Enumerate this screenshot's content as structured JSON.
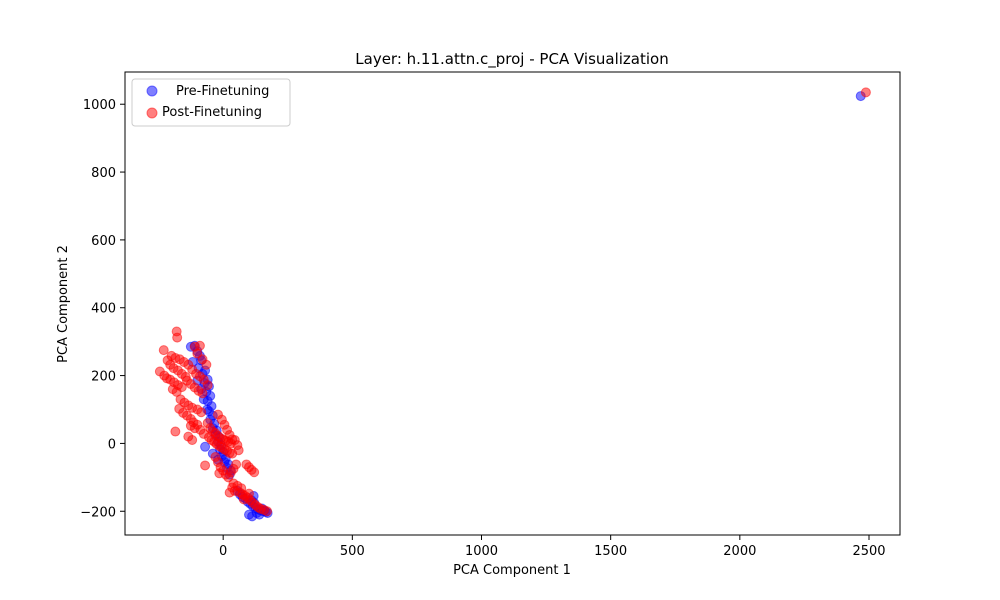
{
  "colors": {
    "pre": "#0000ff",
    "post": "#ff0000",
    "axis": "#000000",
    "legend_border": "#cccccc"
  },
  "chart_data": {
    "type": "scatter",
    "title": "Layer: h.11.attn.c_proj - PCA Visualization",
    "xlabel": "PCA Component 1",
    "ylabel": "PCA Component 2",
    "xlim": [
      -380,
      2620
    ],
    "ylim": [
      -270,
      1095
    ],
    "xticks": [
      0,
      500,
      1000,
      1500,
      2000,
      2500
    ],
    "yticks": [
      -200,
      0,
      200,
      400,
      600,
      800,
      1000
    ],
    "grid": false,
    "legend_position": "top-left",
    "series": [
      {
        "name": "Pre-Finetuning",
        "color": "#0000ff",
        "points": [
          [
            2468,
            1024
          ],
          [
            -125,
            285
          ],
          [
            -110,
            288
          ],
          [
            -100,
            272
          ],
          [
            -90,
            258
          ],
          [
            -85,
            245
          ],
          [
            -118,
            240
          ],
          [
            -95,
            222
          ],
          [
            -70,
            215
          ],
          [
            -80,
            205
          ],
          [
            -60,
            188
          ],
          [
            -72,
            178
          ],
          [
            -55,
            168
          ],
          [
            -65,
            152
          ],
          [
            -50,
            140
          ],
          [
            -60,
            125
          ],
          [
            -45,
            110
          ],
          [
            -55,
            95
          ],
          [
            -40,
            82
          ],
          [
            -50,
            70
          ],
          [
            -35,
            58
          ],
          [
            -40,
            45
          ],
          [
            -25,
            38
          ],
          [
            -30,
            25
          ],
          [
            -15,
            18
          ],
          [
            -20,
            5
          ],
          [
            -8,
            -5
          ],
          [
            -12,
            -18
          ],
          [
            0,
            -25
          ],
          [
            -5,
            -38
          ],
          [
            10,
            -45
          ],
          [
            5,
            -55
          ],
          [
            20,
            -62
          ],
          [
            15,
            -72
          ],
          [
            30,
            -80
          ],
          [
            25,
            -92
          ],
          [
            -70,
            -10
          ],
          [
            -40,
            -30
          ],
          [
            -20,
            -48
          ],
          [
            55,
            -140
          ],
          [
            65,
            -150
          ],
          [
            75,
            -158
          ],
          [
            85,
            -162
          ],
          [
            95,
            -172
          ],
          [
            105,
            -178
          ],
          [
            115,
            -185
          ],
          [
            125,
            -190
          ],
          [
            135,
            -195
          ],
          [
            145,
            -197
          ],
          [
            155,
            -200
          ],
          [
            165,
            -202
          ],
          [
            172,
            -205
          ],
          [
            110,
            -168
          ],
          [
            120,
            -175
          ],
          [
            100,
            -210
          ],
          [
            112,
            -215
          ],
          [
            130,
            -205
          ],
          [
            140,
            -210
          ],
          [
            150,
            -192
          ],
          [
            160,
            -198
          ],
          [
            118,
            -155
          ],
          [
            -100,
            185
          ],
          [
            -85,
            160
          ],
          [
            -75,
            130
          ],
          [
            -62,
            100
          ]
        ]
      },
      {
        "name": "Post-Finetuning",
        "color": "#ff0000",
        "points": [
          [
            2488,
            1035
          ],
          [
            -180,
            330
          ],
          [
            -178,
            312
          ],
          [
            -230,
            275
          ],
          [
            -200,
            258
          ],
          [
            -185,
            252
          ],
          [
            -168,
            248
          ],
          [
            -152,
            240
          ],
          [
            -135,
            232
          ],
          [
            -215,
            245
          ],
          [
            -205,
            232
          ],
          [
            -192,
            222
          ],
          [
            -175,
            215
          ],
          [
            -160,
            205
          ],
          [
            -145,
            196
          ],
          [
            -245,
            212
          ],
          [
            -228,
            200
          ],
          [
            -218,
            192
          ],
          [
            -205,
            188
          ],
          [
            -190,
            180
          ],
          [
            -175,
            172
          ],
          [
            -160,
            166
          ],
          [
            -195,
            160
          ],
          [
            -180,
            152
          ],
          [
            -110,
            285
          ],
          [
            -90,
            288
          ],
          [
            -100,
            265
          ],
          [
            -80,
            248
          ],
          [
            -65,
            232
          ],
          [
            -120,
            218
          ],
          [
            -105,
            205
          ],
          [
            -90,
            198
          ],
          [
            -75,
            188
          ],
          [
            -60,
            172
          ],
          [
            -140,
            185
          ],
          [
            -125,
            175
          ],
          [
            -110,
            165
          ],
          [
            -95,
            155
          ],
          [
            -80,
            148
          ],
          [
            -165,
            130
          ],
          [
            -150,
            120
          ],
          [
            -135,
            112
          ],
          [
            -120,
            105
          ],
          [
            -100,
            100
          ],
          [
            -85,
            92
          ],
          [
            -170,
            102
          ],
          [
            -155,
            90
          ],
          [
            -140,
            82
          ],
          [
            -125,
            72
          ],
          [
            -115,
            62
          ],
          [
            -100,
            55
          ],
          [
            -88,
            40
          ],
          [
            -75,
            28
          ],
          [
            -125,
            52
          ],
          [
            -110,
            45
          ],
          [
            -135,
            20
          ],
          [
            -120,
            10
          ],
          [
            -185,
            35
          ],
          [
            -70,
            -65
          ],
          [
            -60,
            60
          ],
          [
            -50,
            45
          ],
          [
            -40,
            35
          ],
          [
            -30,
            30
          ],
          [
            -20,
            22
          ],
          [
            -10,
            15
          ],
          [
            0,
            12
          ],
          [
            10,
            8
          ],
          [
            20,
            5
          ],
          [
            30,
            0
          ],
          [
            -55,
            18
          ],
          [
            -45,
            10
          ],
          [
            -35,
            5
          ],
          [
            -25,
            -2
          ],
          [
            -15,
            -8
          ],
          [
            -5,
            -12
          ],
          [
            5,
            -18
          ],
          [
            15,
            -22
          ],
          [
            25,
            -28
          ],
          [
            35,
            -30
          ],
          [
            -20,
            85
          ],
          [
            -5,
            70
          ],
          [
            5,
            55
          ],
          [
            15,
            40
          ],
          [
            25,
            25
          ],
          [
            35,
            12
          ],
          [
            45,
            10
          ],
          [
            55,
            -5
          ],
          [
            60,
            -20
          ],
          [
            -30,
            -40
          ],
          [
            -20,
            -55
          ],
          [
            -10,
            -70
          ],
          [
            0,
            -80
          ],
          [
            -15,
            -88
          ],
          [
            10,
            -92
          ],
          [
            20,
            -100
          ],
          [
            30,
            -85
          ],
          [
            40,
            -75
          ],
          [
            50,
            -62
          ],
          [
            90,
            -62
          ],
          [
            100,
            -70
          ],
          [
            110,
            -78
          ],
          [
            120,
            -85
          ],
          [
            35,
            -130
          ],
          [
            45,
            -140
          ],
          [
            55,
            -125
          ],
          [
            65,
            -145
          ],
          [
            75,
            -150
          ],
          [
            85,
            -155
          ],
          [
            95,
            -160
          ],
          [
            105,
            -168
          ],
          [
            115,
            -175
          ],
          [
            125,
            -182
          ],
          [
            135,
            -188
          ],
          [
            145,
            -193
          ],
          [
            158,
            -196
          ],
          [
            170,
            -200
          ],
          [
            25,
            -145
          ],
          [
            40,
            -118
          ],
          [
            70,
            -132
          ],
          [
            80,
            -165
          ],
          [
            100,
            -148
          ]
        ]
      }
    ]
  }
}
